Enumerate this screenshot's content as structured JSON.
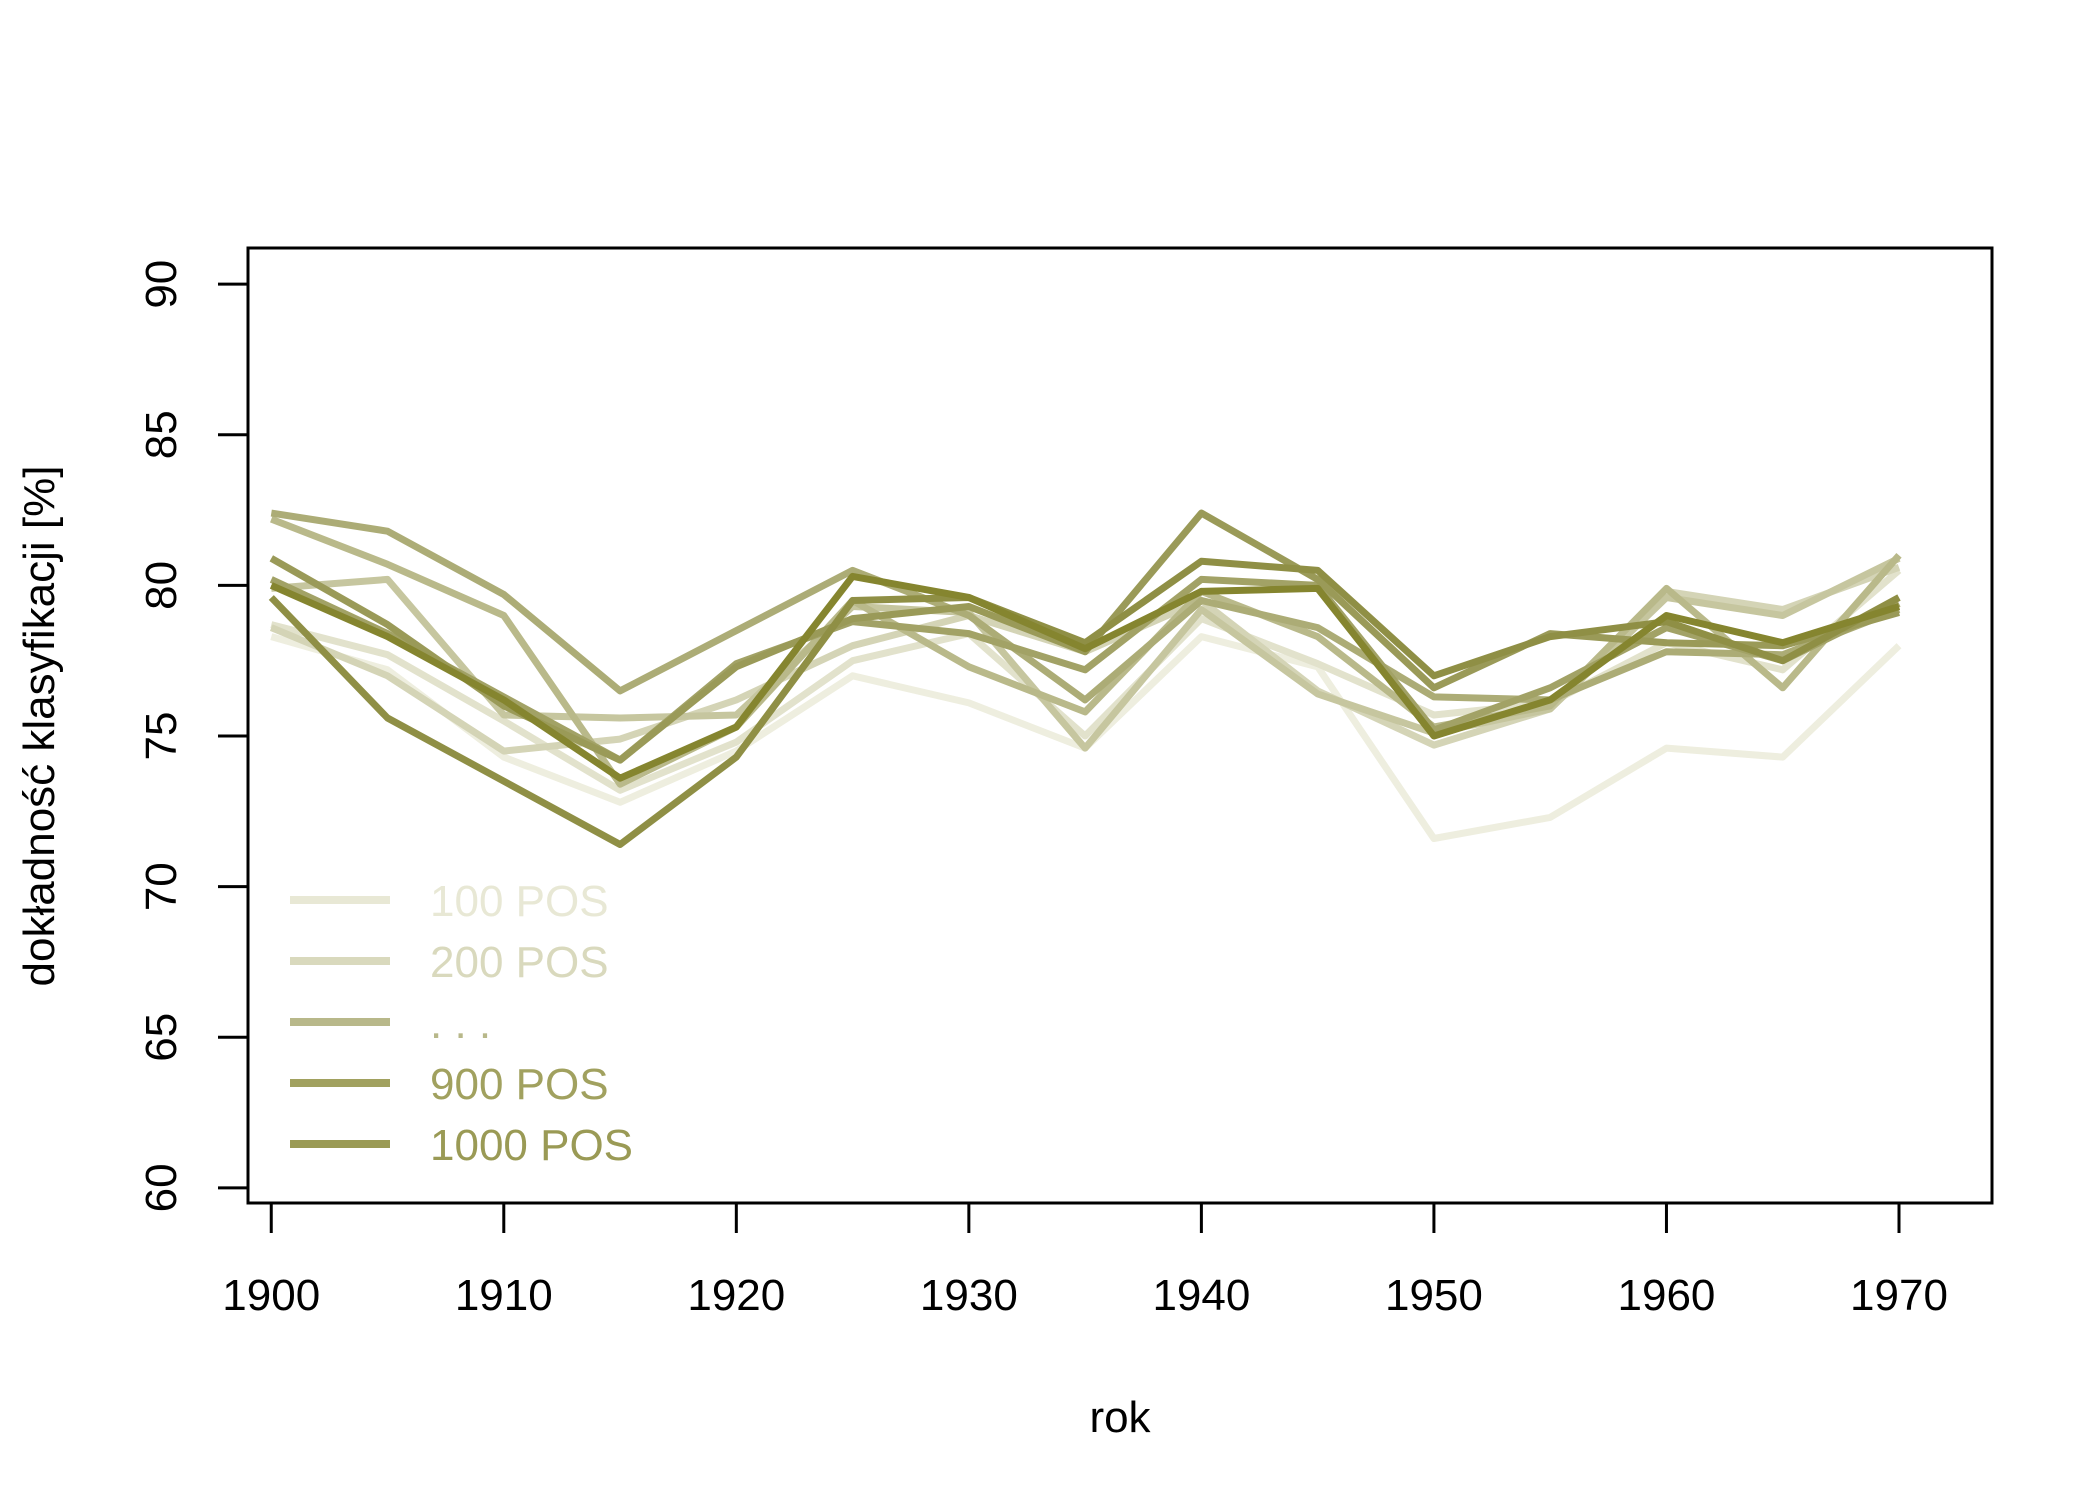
{
  "chart_data": {
    "type": "line",
    "title": "",
    "xlabel": "rok",
    "ylabel": "dokładność klasyfikacji [%]",
    "x": [
      1900,
      1905,
      1910,
      1915,
      1920,
      1925,
      1930,
      1935,
      1940,
      1945,
      1950,
      1955,
      1960,
      1965,
      1970
    ],
    "xlim": [
      1899,
      1974
    ],
    "ylim": [
      59.5,
      91.2
    ],
    "xticks": [
      1900,
      1910,
      1920,
      1930,
      1940,
      1950,
      1960,
      1970
    ],
    "yticks": [
      60,
      65,
      70,
      75,
      80,
      85,
      90
    ],
    "grid": false,
    "legend": {
      "position": "bottom-left",
      "entries": [
        {
          "label": "100 POS",
          "color": "#e8e8d5"
        },
        {
          "label": "200 POS",
          "color": "#d9d9bd"
        },
        {
          "label": ". . .",
          "color": "#b8b88a"
        },
        {
          "label": "900 POS",
          "color": "#a1a15f"
        },
        {
          "label": "1000 POS",
          "color": "#9a9a55"
        }
      ]
    },
    "series": [
      {
        "color": "#eeeedf",
        "values": [
          78.3,
          77.2,
          74.3,
          72.8,
          74.5,
          77.0,
          76.1,
          74.6,
          78.3,
          77.3,
          71.6,
          72.3,
          74.6,
          74.3,
          78.0
        ]
      },
      {
        "color": "#e2e2cc",
        "values": [
          78.7,
          77.7,
          75.5,
          73.2,
          74.8,
          77.5,
          78.4,
          75.0,
          78.9,
          77.4,
          75.7,
          76.1,
          78.1,
          77.2,
          80.5
        ]
      },
      {
        "color": "#d4d4b6",
        "values": [
          78.6,
          77.0,
          74.5,
          74.9,
          76.2,
          78.0,
          79.0,
          77.8,
          79.5,
          76.5,
          74.7,
          75.9,
          79.8,
          79.2,
          80.6
        ]
      },
      {
        "color": "#c6c69f",
        "values": [
          79.9,
          80.2,
          75.7,
          75.6,
          75.7,
          79.3,
          79.1,
          74.6,
          79.2,
          76.4,
          75.1,
          75.9,
          79.6,
          79.0,
          80.9
        ]
      },
      {
        "color": "#b9b98a",
        "values": [
          82.2,
          80.7,
          79.0,
          73.4,
          75.3,
          79.5,
          77.3,
          75.8,
          79.8,
          78.3,
          75.3,
          76.0,
          79.9,
          76.6,
          81.0
        ]
      },
      {
        "color": "#acac76",
        "values": [
          82.4,
          81.8,
          79.7,
          76.5,
          78.5,
          80.5,
          79.0,
          76.2,
          79.5,
          78.6,
          76.3,
          76.2,
          77.8,
          77.7,
          79.2
        ]
      },
      {
        "color": "#a2a266",
        "values": [
          80.2,
          78.4,
          76.3,
          74.2,
          77.4,
          78.8,
          78.4,
          77.2,
          80.2,
          80.0,
          75.2,
          76.6,
          78.6,
          77.5,
          79.4
        ]
      },
      {
        "color": "#9a9a58",
        "values": [
          80.9,
          78.7,
          76.0,
          74.2,
          77.3,
          78.9,
          79.3,
          77.8,
          82.4,
          80.2,
          76.6,
          78.4,
          78.1,
          78.0,
          79.1
        ]
      },
      {
        "color": "#8f8f45",
        "values": [
          79.6,
          75.6,
          73.5,
          71.4,
          74.3,
          79.5,
          79.6,
          78.1,
          80.8,
          80.5,
          77.0,
          78.3,
          78.8,
          77.5,
          79.6
        ]
      },
      {
        "color": "#85852f",
        "values": [
          80.0,
          78.3,
          76.2,
          73.6,
          75.3,
          80.3,
          79.6,
          77.9,
          79.8,
          79.9,
          75.0,
          76.2,
          79.0,
          78.1,
          79.3
        ]
      }
    ]
  }
}
